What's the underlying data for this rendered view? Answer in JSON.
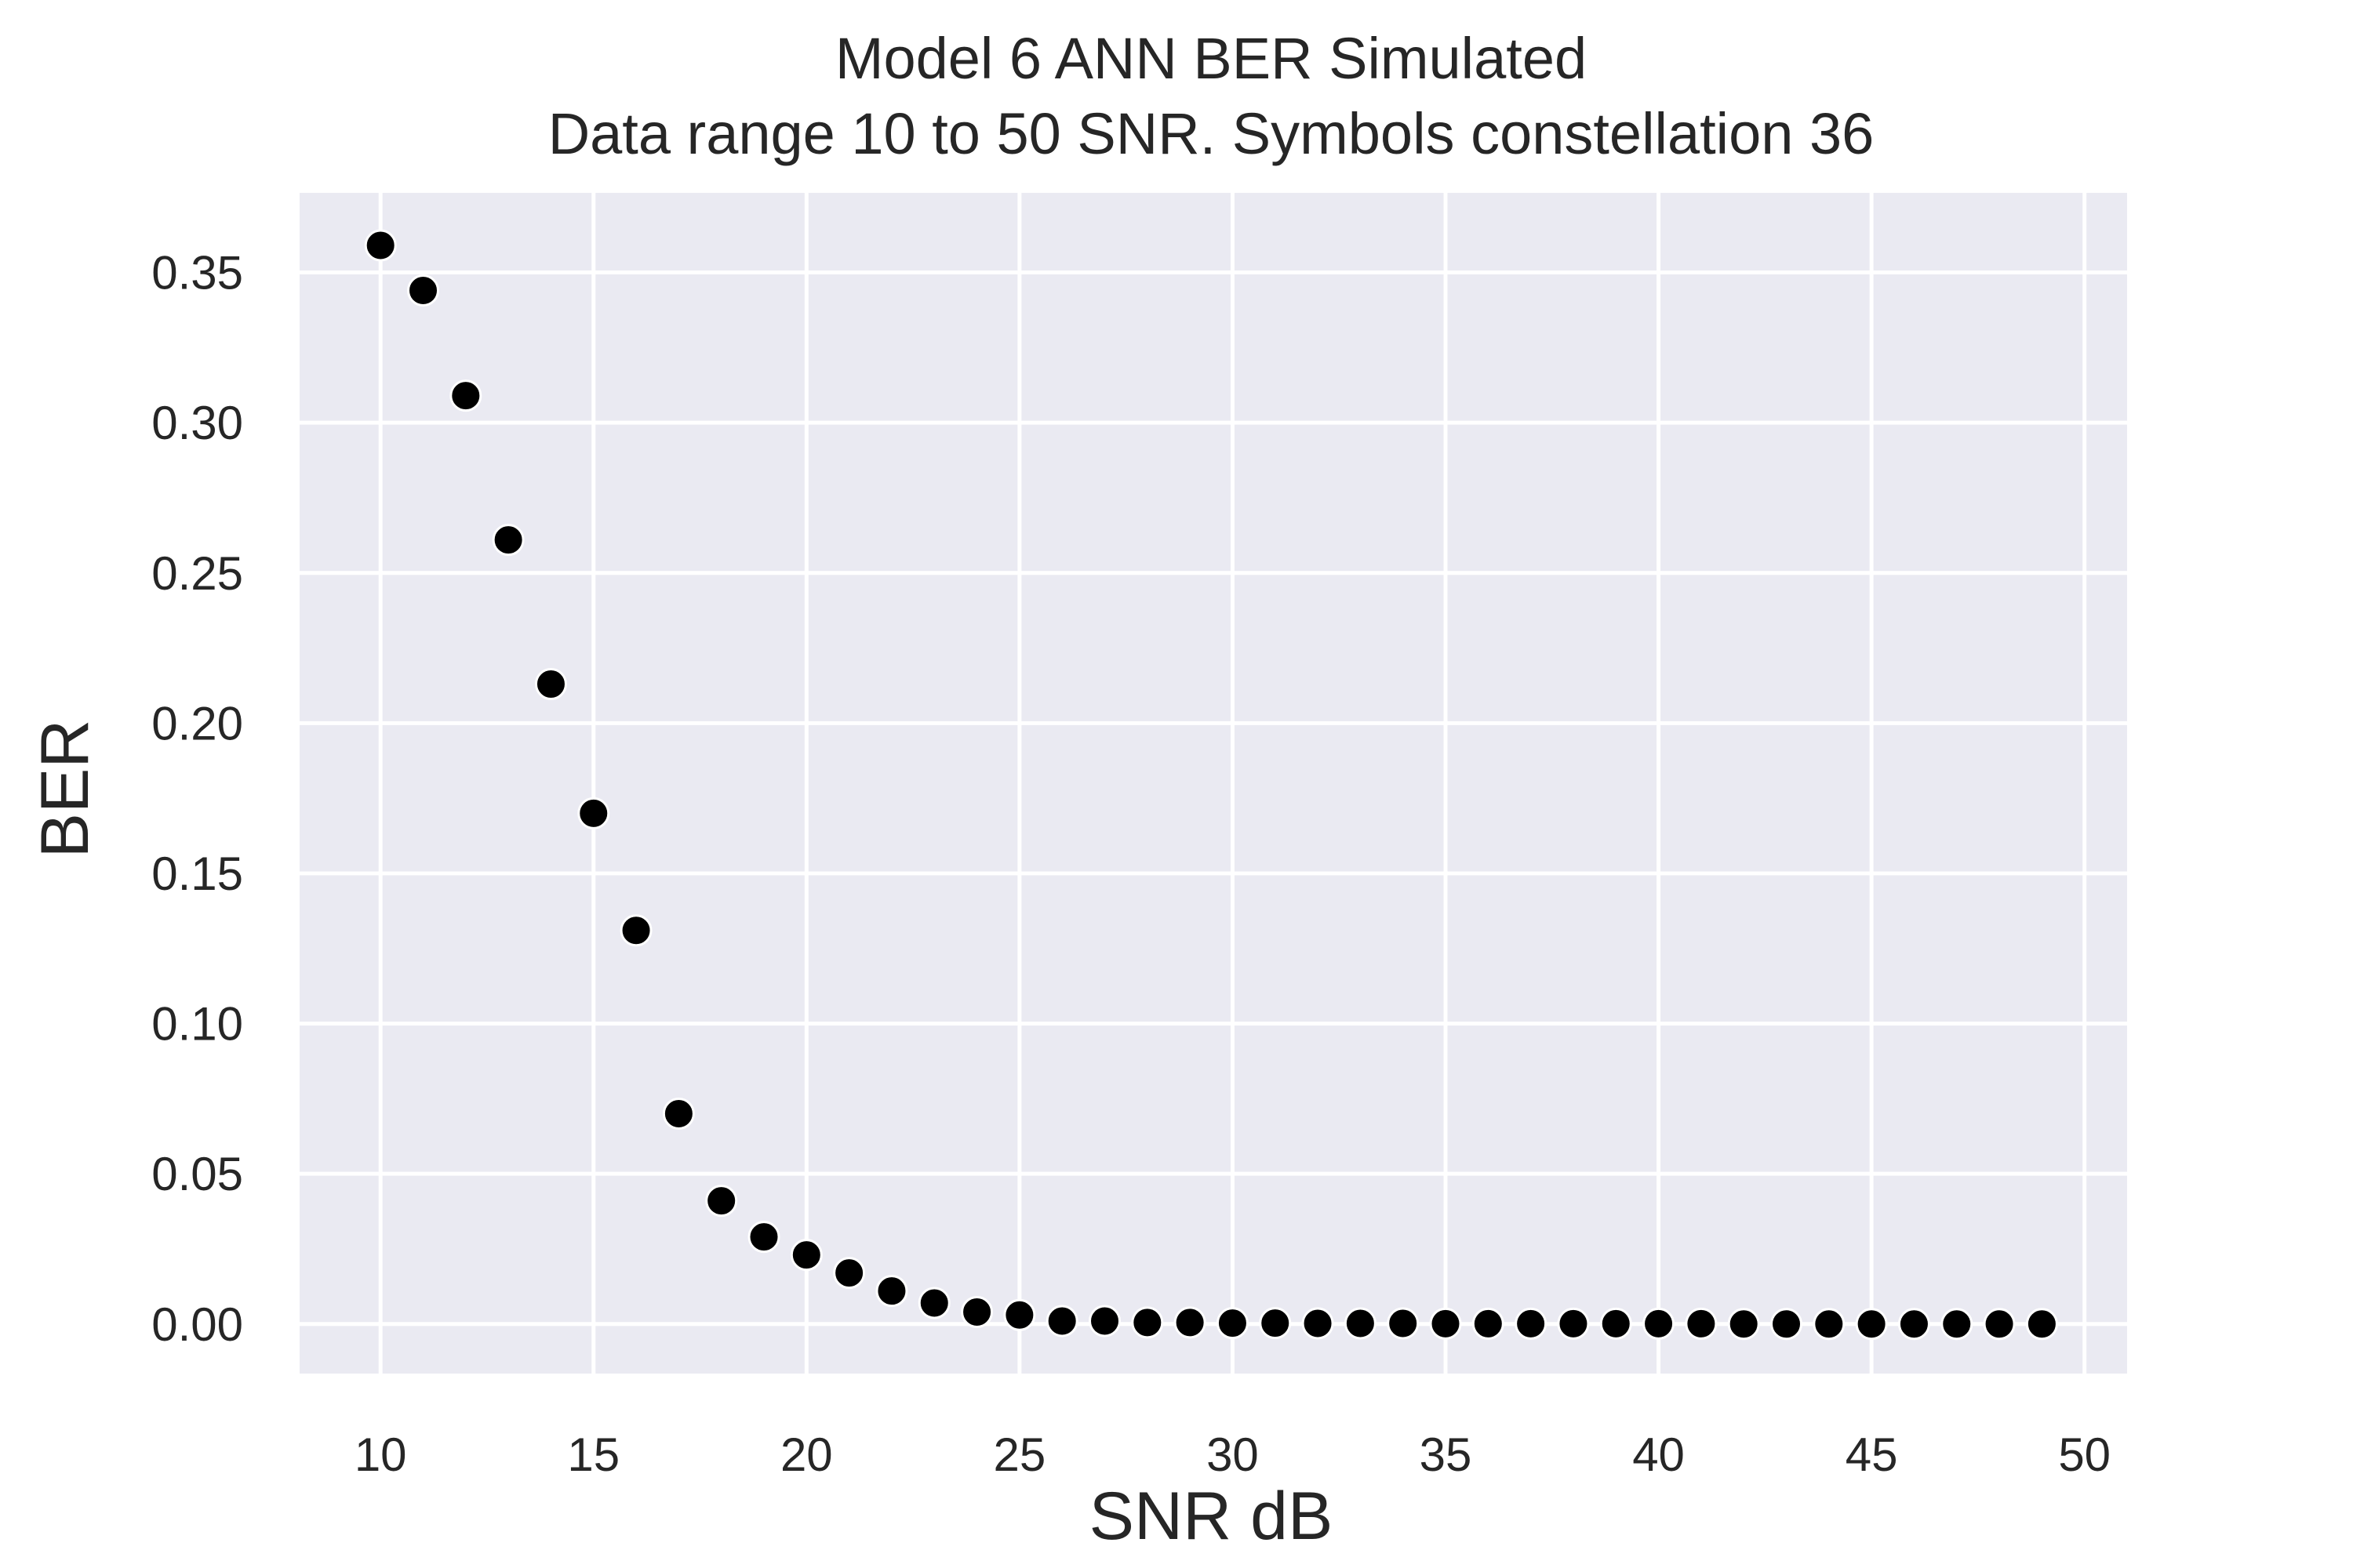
{
  "chart_data": {
    "type": "scatter",
    "title": "Model 6 ANN BER Simulated",
    "subtitle": "Data range 10 to 50 SNR. Symbols constellation 36",
    "xlabel": "SNR dB",
    "ylabel": "BER",
    "xlim": [
      8.1,
      51.0
    ],
    "ylim": [
      -0.0165,
      0.3765
    ],
    "xticks": [
      10,
      15,
      20,
      25,
      30,
      35,
      40,
      45,
      50
    ],
    "yticks": [
      "0.00",
      "0.05",
      "0.10",
      "0.15",
      "0.20",
      "0.25",
      "0.30",
      "0.35"
    ],
    "grid": true,
    "colors": {
      "background": "#eaeaf2",
      "grid": "#ffffff",
      "marker": "#000000",
      "marker_edge": "#ffffff"
    },
    "x": [
      10,
      11,
      12,
      13,
      14,
      15,
      16,
      17,
      18,
      19,
      20,
      21,
      22,
      23,
      24,
      25,
      26,
      27,
      28,
      29,
      30,
      31,
      32,
      33,
      34,
      35,
      36,
      37,
      38,
      39,
      40,
      41,
      42,
      43,
      44,
      45,
      46,
      47,
      48,
      49
    ],
    "y": [
      0.359,
      0.344,
      0.309,
      0.261,
      0.213,
      0.17,
      0.131,
      0.07,
      0.041,
      0.029,
      0.023,
      0.017,
      0.011,
      0.007,
      0.004,
      0.003,
      0.001,
      0.001,
      0.0005,
      0.0005,
      0.0003,
      0.0003,
      0.0002,
      0.0002,
      0.0002,
      0.0001,
      0.0001,
      0.0001,
      0.0001,
      0.0001,
      0.0001,
      0.0001,
      0.0,
      0.0,
      0.0,
      0.0,
      0.0,
      0.0,
      0.0,
      0.0
    ]
  }
}
